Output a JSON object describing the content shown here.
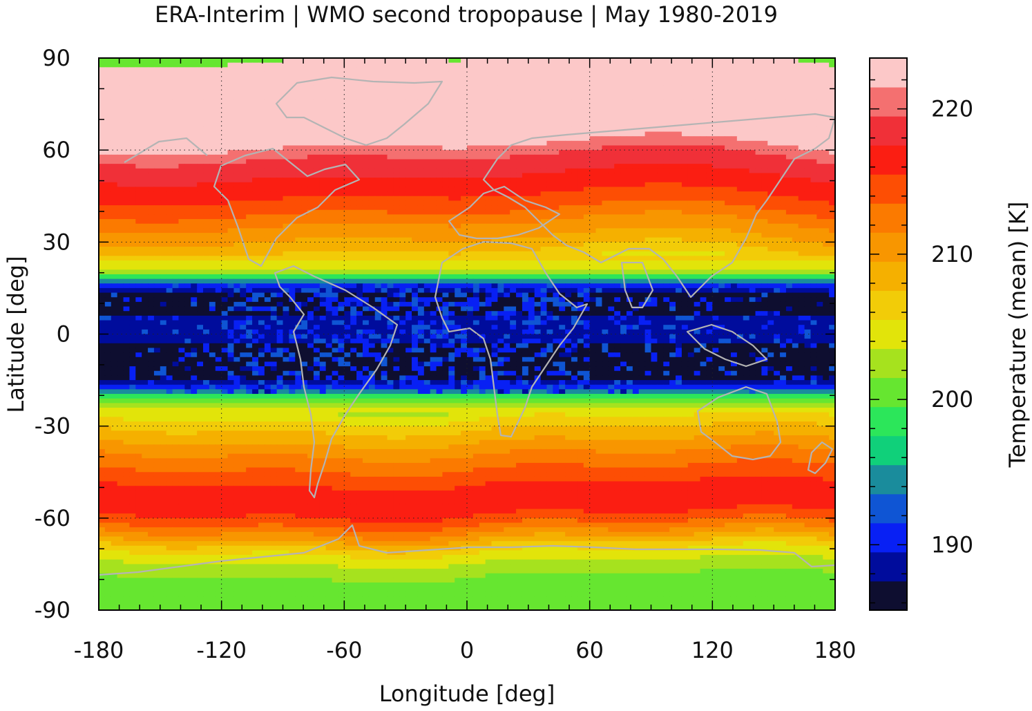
{
  "chart_data": {
    "type": "heatmap",
    "title": "ERA-Interim | WMO second tropopause | May 1980-2019",
    "xlabel": "Longitude [deg]",
    "ylabel": "Latitude [deg]",
    "colorbar_label": "Temperature (mean) [K]",
    "xlim": [
      -180,
      180
    ],
    "ylim": [
      -90,
      90
    ],
    "xticks": [
      -180,
      -120,
      -60,
      0,
      60,
      120,
      180
    ],
    "yticks": [
      90,
      60,
      30,
      0,
      -30,
      -60,
      -90
    ],
    "colorbar_range": [
      185.5,
      223.5
    ],
    "colorbar_ticks": [
      190,
      200,
      210,
      220
    ],
    "grid": true,
    "colorbar_placement": "right",
    "colormap": [
      "#0e0e30",
      "#000c9c",
      "#0820f4",
      "#0f55d4",
      "#1a8c9c",
      "#10d07a",
      "#2ce65a",
      "#66e630",
      "#a6e21e",
      "#e2e40a",
      "#f2cc08",
      "#f5b000",
      "#f89600",
      "#fb7a00",
      "#fd4e04",
      "#fb1e12",
      "#f03038",
      "#f47070",
      "#fcc8c8"
    ],
    "band_temperatures_by_latitude": {
      "lat": [
        90,
        80,
        70,
        62,
        58,
        55,
        50,
        45,
        40,
        35,
        30,
        25,
        20,
        15,
        10,
        5,
        0,
        -5,
        -10,
        -15,
        -20,
        -25,
        -30,
        -35,
        -40,
        -45,
        -50,
        -55,
        -60,
        -65,
        -70,
        -75,
        -80,
        -85,
        -90
      ],
      "temperature": [
        223,
        223,
        223,
        221.8,
        219.5,
        218.5,
        217,
        215.5,
        213.5,
        211,
        209,
        206.5,
        203,
        188,
        186,
        188,
        188,
        187,
        186,
        186,
        198,
        204,
        207,
        209.5,
        212,
        214,
        216,
        217,
        215,
        211,
        206,
        203,
        201,
        200,
        200
      ]
    }
  }
}
